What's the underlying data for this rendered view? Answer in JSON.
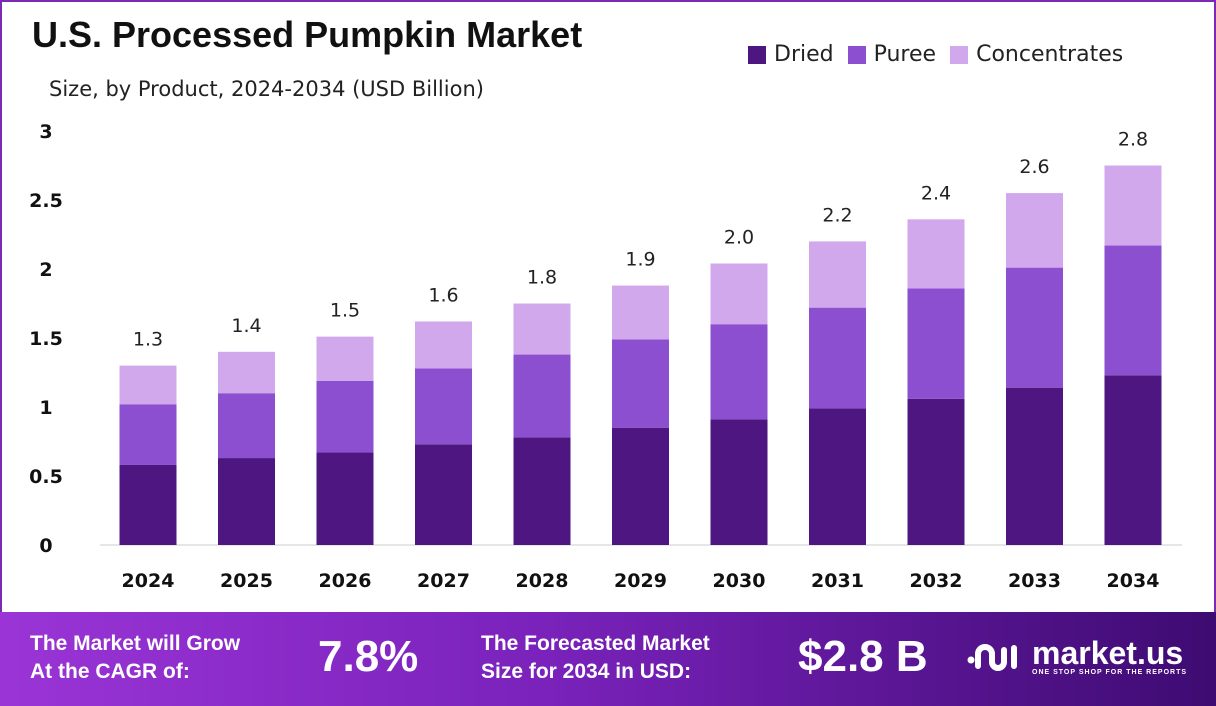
{
  "chart_data": {
    "type": "bar",
    "stacked": true,
    "title": "U.S. Processed Pumpkin Market",
    "subtitle": "Size, by Product, 2024-2034 (USD Billion)",
    "xlabel": "",
    "ylabel": "",
    "ylim": [
      0,
      3
    ],
    "yticks": [
      "0",
      "0.5",
      "1",
      "1.5",
      "2",
      "2.5",
      "3"
    ],
    "grid": false,
    "legend_position": "top-right",
    "categories": [
      "2024",
      "2025",
      "2026",
      "2027",
      "2028",
      "2029",
      "2030",
      "2031",
      "2032",
      "2033",
      "2034"
    ],
    "series": [
      {
        "name": "Dried",
        "color": "#4e1680",
        "values": [
          0.58,
          0.63,
          0.67,
          0.73,
          0.78,
          0.85,
          0.91,
          0.99,
          1.06,
          1.14,
          1.23
        ]
      },
      {
        "name": "Puree",
        "color": "#8b4fd0",
        "values": [
          0.44,
          0.47,
          0.52,
          0.55,
          0.6,
          0.64,
          0.69,
          0.73,
          0.8,
          0.87,
          0.94
        ]
      },
      {
        "name": "Concentrates",
        "color": "#d2a8ec",
        "values": [
          0.28,
          0.3,
          0.32,
          0.34,
          0.37,
          0.39,
          0.44,
          0.48,
          0.5,
          0.54,
          0.58
        ]
      }
    ],
    "total_labels": [
      "1.3",
      "1.4",
      "1.5",
      "1.6",
      "1.8",
      "1.9",
      "2.0",
      "2.2",
      "2.4",
      "2.6",
      "2.8"
    ]
  },
  "banner": {
    "cagr_label_line1": "The Market will Grow",
    "cagr_label_line2": "At the CAGR of:",
    "cagr_value": "7.8%",
    "forecast_label_line1": "The Forecasted Market",
    "forecast_label_line2": "Size for 2034 in USD:",
    "forecast_value": "$2.8 B",
    "logo_name": "market.us",
    "logo_tagline": "ONE STOP SHOP FOR THE REPORTS"
  }
}
